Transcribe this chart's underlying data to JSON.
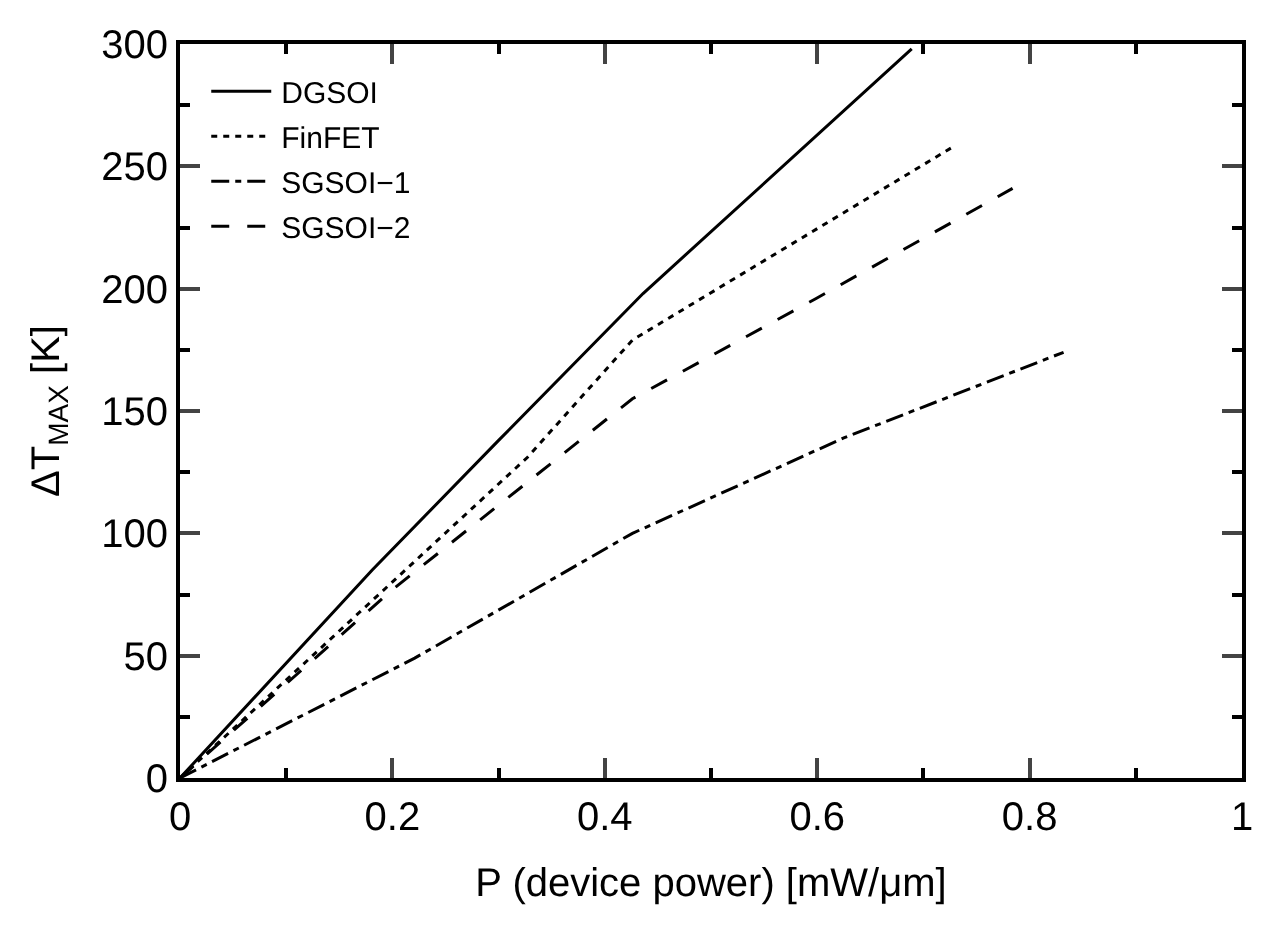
{
  "chart_data": {
    "type": "line",
    "xlabel": "P (device power) [mW/μm]",
    "ylabel": "ΔT$_{MAX}$ [K]",
    "series": [
      {
        "name": "DGSOI",
        "color": "#000000",
        "line_style": "solid",
        "x": [
          0,
          0.181,
          0.3,
          0.436,
          0.689
        ],
        "values": [
          0,
          85,
          138,
          198,
          298
        ]
      },
      {
        "name": "FinFET",
        "color": "#000000",
        "line_style": "dotted",
        "x": [
          0,
          0.327,
          0.426,
          0.728
        ],
        "values": [
          0,
          131,
          179,
          258
        ]
      },
      {
        "name": "SGSOI−1",
        "color": "#000000",
        "line_style": "dashdot",
        "x": [
          0,
          0.221,
          0.426,
          0.625,
          0.832
        ],
        "values": [
          0,
          49,
          100,
          139,
          174
        ]
      },
      {
        "name": "SGSOI−2",
        "color": "#000000",
        "line_style": "dashed",
        "x": [
          0,
          0.2,
          0.426,
          0.599,
          0.784
        ],
        "values": [
          0,
          77,
          155,
          196,
          241
        ]
      }
    ],
    "xlim": [
      0,
      1
    ],
    "ylim": [
      0,
      300
    ],
    "xticks": [
      0,
      {
        "value": 0.1,
        "label": null
      },
      0.2,
      {
        "value": 0.3,
        "label": null
      },
      0.4,
      {
        "value": 0.5,
        "label": null
      },
      0.6,
      {
        "value": 0.7,
        "label": null
      },
      0.8,
      {
        "value": 0.9,
        "label": null
      },
      1
    ],
    "yticks": [
      0,
      {
        "value": 25,
        "label": null
      },
      50,
      {
        "value": 75,
        "label": null
      },
      100,
      {
        "value": 125,
        "label": null
      },
      150,
      {
        "value": 175,
        "label": null
      },
      200,
      {
        "value": 225,
        "label": null
      },
      250,
      {
        "value": 275,
        "label": null
      },
      300
    ],
    "legend": "top left",
    "marker": "none"
  }
}
